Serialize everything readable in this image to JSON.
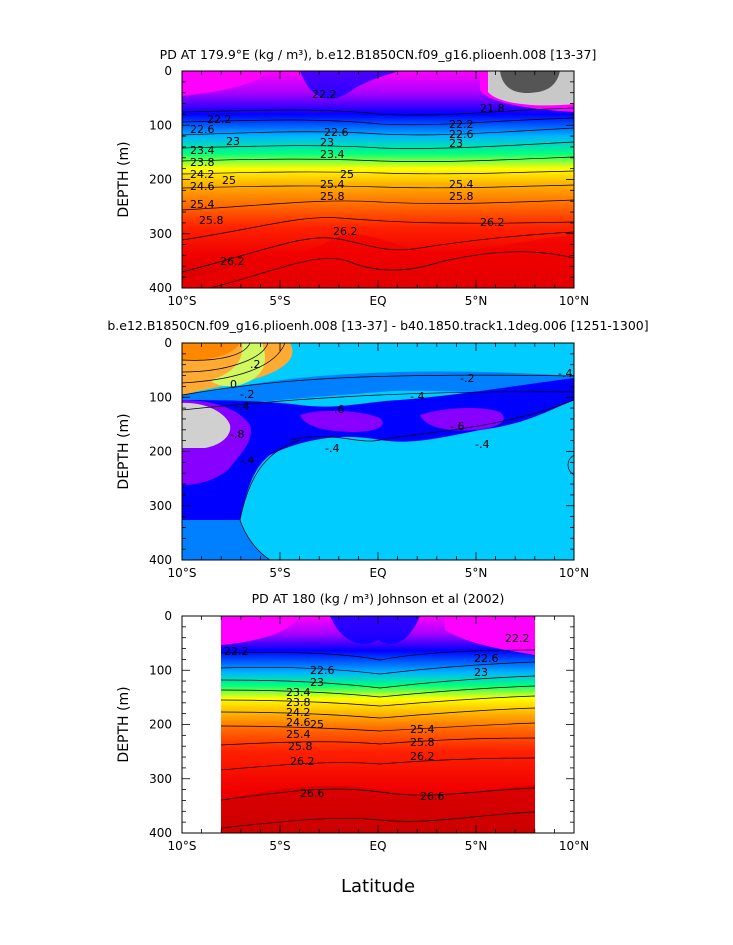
{
  "chart_data": [
    {
      "type": "heatmap",
      "subtype": "filled-contour depth section",
      "title": "PD AT 179.9°E (kg / m³), b.e12.B1850CN.f09_g16.plioenh.008 [13-37]",
      "xlabel": "",
      "ylabel": "DEPTH (m)",
      "xlim": [
        -10,
        10
      ],
      "ylim": [
        400,
        0
      ],
      "x_ticks": [
        "10°S",
        "5°S",
        "EQ",
        "5°N",
        "10°N"
      ],
      "y_ticks": [
        "0",
        "100",
        "200",
        "300",
        "400"
      ],
      "contour_labels": [
        "22.2",
        "21.8",
        "22.2",
        "22.6",
        "22.6",
        "23",
        "23",
        "23.4",
        "23.4",
        "23.8",
        "24.2",
        "24.6",
        "25",
        "25",
        "25.4",
        "25.4",
        "25.4",
        "25.8",
        "25.8",
        "25.8",
        "26.2",
        "26.2",
        "26.2",
        "22.2",
        "22.6",
        "23"
      ],
      "description": "Potential density isopycnals; light waters near surface, dense below ~250 m"
    },
    {
      "type": "heatmap",
      "subtype": "filled-contour depth section difference",
      "title": "b.e12.B1850CN.f09_g16.plioenh.008 [13-37] - b40.1850.track1.1deg.006 [1251-1300]",
      "xlabel": "",
      "ylabel": "DEPTH (m)",
      "xlim": [
        -10,
        10
      ],
      "ylim": [
        400,
        0
      ],
      "x_ticks": [
        "10°S",
        "5°S",
        "EQ",
        "5°N",
        "10°N"
      ],
      "y_ticks": [
        "0",
        "100",
        "200",
        "300",
        "400"
      ],
      "contour_labels": [
        ".2",
        "0",
        "-.2",
        "-.2",
        "-.4",
        "-.4",
        "-.6",
        "-.6",
        "-.8",
        "-.4",
        "-.4",
        "-.4",
        "-.4"
      ]
    },
    {
      "type": "heatmap",
      "subtype": "filled-contour depth section (observations)",
      "title": "PD AT 180 (kg / m³) Johnson et al (2002)",
      "xlabel": "Latitude",
      "ylabel": "DEPTH (m)",
      "xlim": [
        -10,
        10
      ],
      "ylim": [
        400,
        0
      ],
      "data_xrange": [
        -8,
        8
      ],
      "x_ticks": [
        "10°S",
        "5°S",
        "EQ",
        "5°N",
        "10°N"
      ],
      "y_ticks": [
        "0",
        "100",
        "200",
        "300",
        "400"
      ],
      "contour_labels": [
        "22.2",
        "22.2",
        "22.6",
        "22.6",
        "23",
        "23",
        "23.4",
        "23.8",
        "24.2",
        "24.6",
        "25",
        "25.4",
        "25.4",
        "25.8",
        "25.8",
        "26.2",
        "26.2",
        "26.6",
        "26.6"
      ]
    }
  ],
  "colors": {
    "density_scale": [
      "#ff00ff",
      "#aa00ff",
      "#0000ff",
      "#0096ff",
      "#00e0ff",
      "#00ff80",
      "#80ff00",
      "#ffff00",
      "#ffb300",
      "#ff6a00",
      "#ff2200",
      "#e60000",
      "#cc0000"
    ],
    "diff_scale": [
      "#d0d0d0",
      "#8800ff",
      "#0000ff",
      "#0080ff",
      "#00ccff",
      "#99ff66",
      "#ffff00",
      "#ffaa33"
    ]
  }
}
